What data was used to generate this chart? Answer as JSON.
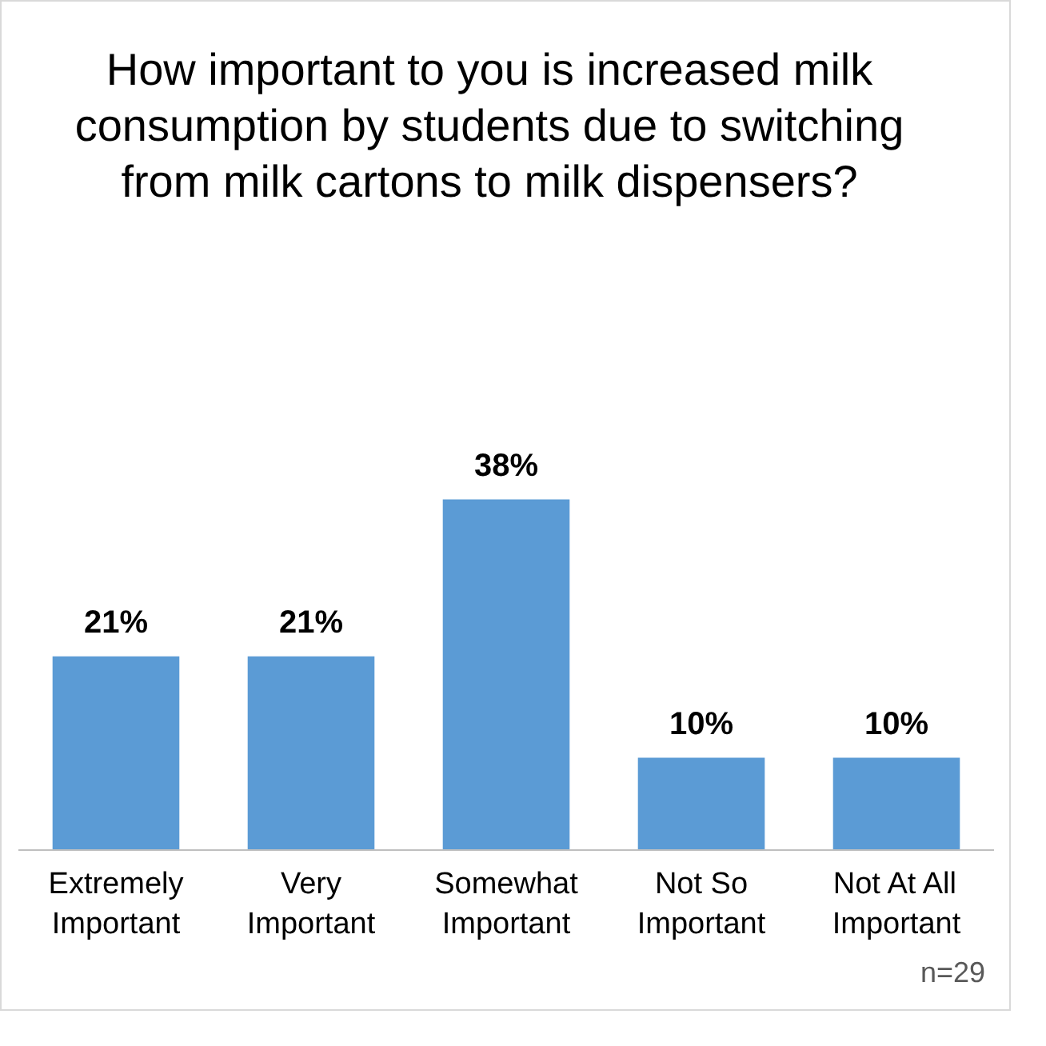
{
  "chart_data": {
    "type": "bar",
    "title": "How important to you is increased milk consumption by students due to switching from milk cartons to milk dispensers?",
    "categories": [
      "Extremely Important",
      "Very Important",
      "Somewhat Important",
      "Not So Important",
      "Not At All Important"
    ],
    "values": [
      21,
      21,
      38,
      10,
      10
    ],
    "color": "#5b9bd5",
    "data_labels": true,
    "value_labels": [
      "21%",
      "21%",
      "38%",
      "10%",
      "10%"
    ],
    "annotations": [
      "n=29"
    ]
  }
}
